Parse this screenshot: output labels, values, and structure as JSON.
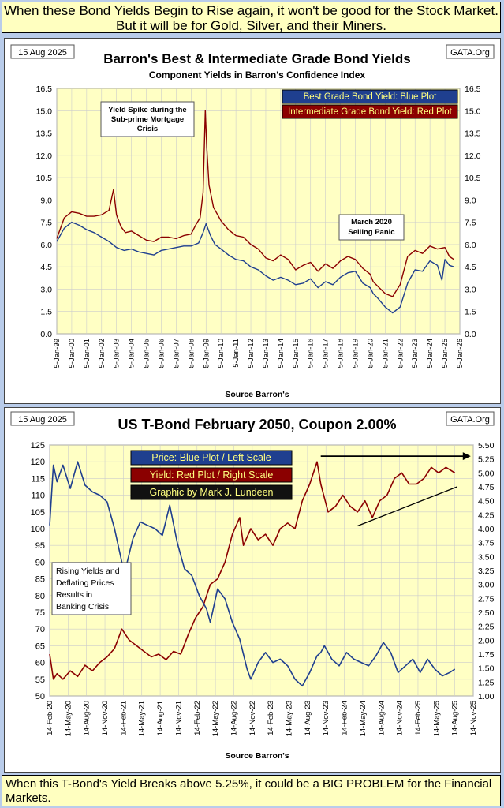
{
  "header_text": "When these Bond Yields Begin to Rise again, it won't be good for the Stock Market. But it will be for Gold, Silver, and their Miners.",
  "footer_text": "When this T-Bond's Yield Breaks above 5.25%, it could be a BIG PROBLEM for the Financial Markets.",
  "colors": {
    "blue": "#1f3f8f",
    "red": "#8b0000",
    "plot_bg": "#ffffc4",
    "banner_bg": "#ffffc0",
    "page_bg": "#b9ccea"
  },
  "chart_data": [
    {
      "type": "line",
      "date_tag": "15 Aug 2025",
      "source_tag": "GATA.Org",
      "title": "Barron's Best & Intermediate Grade Bond Yields",
      "subtitle": "Component Yields in Barron's Confidence Index",
      "xlabel": "Source Barron's",
      "xlim": [
        1999,
        2026
      ],
      "x_ticks": [
        "5-Jan-99",
        "5-Jan-00",
        "5-Jan-01",
        "5-Jan-02",
        "5-Jan-03",
        "5-Jan-04",
        "5-Jan-05",
        "5-Jan-06",
        "5-Jan-07",
        "5-Jan-08",
        "5-Jan-09",
        "5-Jan-10",
        "5-Jan-11",
        "5-Jan-12",
        "5-Jan-13",
        "5-Jan-14",
        "5-Jan-15",
        "5-Jan-16",
        "5-Jan-17",
        "5-Jan-18",
        "5-Jan-19",
        "5-Jan-20",
        "5-Jan-21",
        "5-Jan-22",
        "5-Jan-23",
        "5-Jan-24",
        "5-Jan-25",
        "5-Jan-26"
      ],
      "ylim": [
        0,
        16.5
      ],
      "y_ticks": [
        "0.0",
        "1.5",
        "3.0",
        "4.5",
        "6.0",
        "7.5",
        "9.0",
        "10.5",
        "12.0",
        "13.5",
        "15.0",
        "16.5"
      ],
      "legend": [
        "Best Grade Bond Yield: Blue Plot",
        "Intermediate Grade Bond Yield: Red Plot"
      ],
      "legend_position": "top-right",
      "annotations": [
        "Yield Spike during the Sub-prime Mortgage Crisis",
        "March 2020 Selling Panic"
      ],
      "series": [
        {
          "name": "Best Grade Bond Yield",
          "color": "#1f3f8f",
          "x": [
            1999.0,
            1999.5,
            2000.0,
            2000.5,
            2001.0,
            2001.5,
            2002.0,
            2002.5,
            2003.0,
            2003.5,
            2004.0,
            2004.5,
            2005.0,
            2005.5,
            2006.0,
            2006.5,
            2007.0,
            2007.5,
            2008.0,
            2008.5,
            2008.8,
            2009.0,
            2009.3,
            2009.6,
            2010.0,
            2010.5,
            2011.0,
            2011.5,
            2012.0,
            2012.5,
            2013.0,
            2013.5,
            2014.0,
            2014.5,
            2015.0,
            2015.5,
            2016.0,
            2016.5,
            2017.0,
            2017.5,
            2018.0,
            2018.5,
            2019.0,
            2019.5,
            2020.0,
            2020.2,
            2020.5,
            2021.0,
            2021.5,
            2022.0,
            2022.5,
            2023.0,
            2023.5,
            2024.0,
            2024.5,
            2024.8,
            2025.0,
            2025.3,
            2025.6
          ],
          "y": [
            6.2,
            7.1,
            7.5,
            7.3,
            7.0,
            6.8,
            6.5,
            6.2,
            5.8,
            5.6,
            5.7,
            5.5,
            5.4,
            5.3,
            5.6,
            5.7,
            5.8,
            5.9,
            5.9,
            6.1,
            6.8,
            7.4,
            6.6,
            6.0,
            5.7,
            5.3,
            5.0,
            4.9,
            4.5,
            4.3,
            3.9,
            3.6,
            3.8,
            3.6,
            3.3,
            3.4,
            3.7,
            3.1,
            3.5,
            3.3,
            3.8,
            4.1,
            4.2,
            3.4,
            3.1,
            2.7,
            2.4,
            1.8,
            1.4,
            1.8,
            3.4,
            4.3,
            4.2,
            4.9,
            4.6,
            3.6,
            5.0,
            4.6,
            4.5
          ]
        },
        {
          "name": "Intermediate Grade Bond Yield",
          "color": "#8b0000",
          "x": [
            1999.0,
            1999.5,
            2000.0,
            2000.5,
            2001.0,
            2001.5,
            2002.0,
            2002.5,
            2002.8,
            2003.0,
            2003.3,
            2003.6,
            2004.0,
            2004.5,
            2005.0,
            2005.5,
            2006.0,
            2006.5,
            2007.0,
            2007.5,
            2008.0,
            2008.3,
            2008.6,
            2008.8,
            2008.95,
            2009.05,
            2009.2,
            2009.5,
            2010.0,
            2010.5,
            2011.0,
            2011.5,
            2012.0,
            2012.5,
            2013.0,
            2013.5,
            2014.0,
            2014.5,
            2015.0,
            2015.5,
            2016.0,
            2016.5,
            2017.0,
            2017.5,
            2018.0,
            2018.5,
            2019.0,
            2019.5,
            2020.0,
            2020.2,
            2020.5,
            2021.0,
            2021.5,
            2022.0,
            2022.5,
            2023.0,
            2023.5,
            2024.0,
            2024.5,
            2025.0,
            2025.3,
            2025.6
          ],
          "y": [
            6.4,
            7.8,
            8.2,
            8.1,
            7.9,
            7.9,
            8.0,
            8.3,
            9.7,
            8.0,
            7.2,
            6.8,
            6.9,
            6.6,
            6.3,
            6.2,
            6.5,
            6.5,
            6.4,
            6.6,
            6.7,
            7.3,
            7.8,
            9.5,
            15.0,
            12.5,
            10.0,
            8.5,
            7.6,
            7.0,
            6.6,
            6.5,
            6.0,
            5.7,
            5.1,
            4.9,
            5.3,
            5.0,
            4.3,
            4.6,
            4.8,
            4.2,
            4.7,
            4.4,
            4.9,
            5.2,
            5.0,
            4.4,
            4.0,
            3.5,
            3.2,
            2.7,
            2.5,
            3.3,
            5.2,
            5.6,
            5.4,
            5.9,
            5.7,
            5.8,
            5.2,
            5.0
          ]
        }
      ]
    },
    {
      "type": "line",
      "date_tag": "15 Aug 2025",
      "source_tag": "GATA.Org",
      "title": "US T-Bond February 2050, Coupon 2.00%",
      "xlabel": "Source Barron's",
      "xlim": [
        2020.12,
        2025.87
      ],
      "x_ticks": [
        "14-Feb-20",
        "14-May-20",
        "14-Aug-20",
        "14-Nov-20",
        "14-Feb-21",
        "14-May-21",
        "14-Aug-21",
        "14-Nov-21",
        "14-Feb-22",
        "14-May-22",
        "14-Aug-22",
        "14-Nov-22",
        "14-Feb-23",
        "14-May-23",
        "14-Aug-23",
        "14-Nov-23",
        "14-Feb-24",
        "14-May-24",
        "14-Aug-24",
        "14-Nov-24",
        "14-Feb-25",
        "14-May-25",
        "14-Aug-25",
        "14-Nov-25"
      ],
      "ylim_left": [
        50,
        125
      ],
      "y_ticks_left": [
        "50",
        "55",
        "60",
        "65",
        "70",
        "75",
        "80",
        "85",
        "90",
        "95",
        "100",
        "105",
        "110",
        "115",
        "120",
        "125"
      ],
      "ylim_right": [
        1.0,
        5.5
      ],
      "y_ticks_right": [
        "1.00",
        "1.25",
        "1.50",
        "1.75",
        "2.00",
        "2.25",
        "2.50",
        "2.75",
        "3.00",
        "3.25",
        "3.50",
        "3.75",
        "4.00",
        "4.25",
        "4.50",
        "4.75",
        "5.00",
        "5.25",
        "5.50"
      ],
      "legend": [
        "Price:  Blue Plot / Left Scale",
        "Yield:  Red Plot / Right Scale",
        "Graphic by Mark J. Lundeen"
      ],
      "legend_position": "top-center",
      "annotations": [
        "Rising Yields and Deflating Prices Results in Banking Crisis"
      ],
      "series": [
        {
          "name": "Price",
          "color": "#1f3f8f",
          "axis": "left",
          "x": [
            2020.12,
            2020.17,
            2020.22,
            2020.3,
            2020.4,
            2020.5,
            2020.6,
            2020.7,
            2020.8,
            2020.9,
            2021.0,
            2021.1,
            2021.15,
            2021.25,
            2021.35,
            2021.45,
            2021.55,
            2021.65,
            2021.75,
            2021.85,
            2021.95,
            2022.05,
            2022.15,
            2022.25,
            2022.3,
            2022.4,
            2022.5,
            2022.6,
            2022.7,
            2022.8,
            2022.85,
            2022.95,
            2023.05,
            2023.15,
            2023.25,
            2023.35,
            2023.45,
            2023.55,
            2023.65,
            2023.75,
            2023.8,
            2023.85,
            2023.95,
            2024.05,
            2024.15,
            2024.25,
            2024.35,
            2024.45,
            2024.55,
            2024.65,
            2024.75,
            2024.85,
            2024.95,
            2025.05,
            2025.15,
            2025.25,
            2025.35,
            2025.45,
            2025.55,
            2025.62
          ],
          "y": [
            101,
            119,
            114,
            119,
            112,
            120,
            113,
            111,
            110,
            108,
            100,
            90,
            88,
            97,
            102,
            101,
            100,
            98,
            107,
            96,
            88,
            86,
            80,
            76,
            72,
            82,
            79,
            72,
            67,
            58,
            55,
            60,
            63,
            60,
            61,
            59,
            55,
            53,
            57,
            62,
            63,
            65,
            61,
            59,
            63,
            61,
            60,
            59,
            62,
            66,
            63,
            57,
            59,
            61,
            57,
            61,
            58,
            56,
            57,
            58
          ]
        },
        {
          "name": "Yield",
          "color": "#8b0000",
          "axis": "right",
          "x": [
            2020.12,
            2020.17,
            2020.22,
            2020.3,
            2020.4,
            2020.5,
            2020.6,
            2020.7,
            2020.8,
            2020.9,
            2021.0,
            2021.1,
            2021.2,
            2021.3,
            2021.4,
            2021.5,
            2021.6,
            2021.7,
            2021.8,
            2021.9,
            2022.0,
            2022.1,
            2022.2,
            2022.3,
            2022.4,
            2022.5,
            2022.6,
            2022.7,
            2022.75,
            2022.85,
            2022.95,
            2023.05,
            2023.15,
            2023.25,
            2023.35,
            2023.45,
            2023.55,
            2023.65,
            2023.75,
            2023.8,
            2023.9,
            2024.0,
            2024.1,
            2024.2,
            2024.3,
            2024.4,
            2024.5,
            2024.6,
            2024.7,
            2024.8,
            2024.9,
            2025.0,
            2025.1,
            2025.2,
            2025.3,
            2025.4,
            2025.5,
            2025.62
          ],
          "y": [
            1.75,
            1.3,
            1.4,
            1.3,
            1.45,
            1.35,
            1.55,
            1.45,
            1.6,
            1.7,
            1.85,
            2.2,
            2.0,
            1.9,
            1.8,
            1.7,
            1.75,
            1.65,
            1.8,
            1.75,
            2.1,
            2.4,
            2.6,
            3.0,
            3.1,
            3.4,
            3.9,
            4.2,
            3.7,
            4.0,
            3.8,
            3.9,
            3.7,
            4.0,
            4.1,
            4.0,
            4.5,
            4.8,
            5.2,
            4.8,
            4.3,
            4.4,
            4.6,
            4.4,
            4.3,
            4.5,
            4.2,
            4.5,
            4.6,
            4.9,
            5.0,
            4.8,
            4.8,
            4.9,
            5.1,
            5.0,
            5.1,
            5.0
          ]
        }
      ]
    }
  ]
}
